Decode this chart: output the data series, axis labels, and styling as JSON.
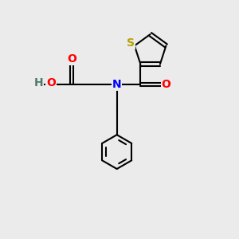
{
  "background_color": "#ebebeb",
  "bond_color": "#000000",
  "atom_colors": {
    "S": "#b8a000",
    "N": "#0000ff",
    "O": "#ff0000",
    "H": "#507a70",
    "C": "#000000"
  },
  "figsize": [
    3.0,
    3.0
  ],
  "dpi": 100,
  "lw": 1.5,
  "fs": 10
}
